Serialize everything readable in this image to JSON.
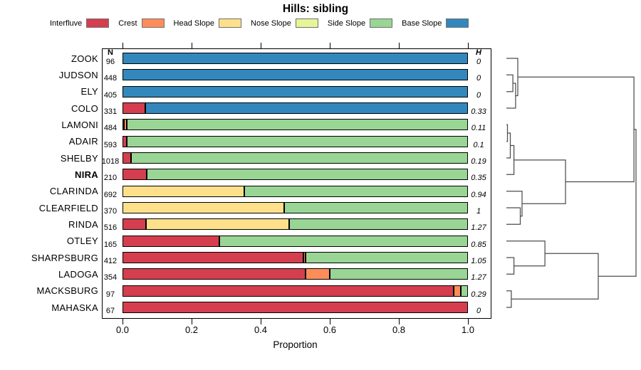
{
  "title": "Hills: sibling",
  "legend": [
    {
      "label": "Interfluve",
      "color": "#D53E4F"
    },
    {
      "label": "Crest",
      "color": "#FC8D59"
    },
    {
      "label": "Head Slope",
      "color": "#FEE08B"
    },
    {
      "label": "Nose Slope",
      "color": "#E6F598"
    },
    {
      "label": "Side Slope",
      "color": "#99D594"
    },
    {
      "label": "Base Slope",
      "color": "#3288BD"
    }
  ],
  "columns": {
    "n_header": "N",
    "h_header": "H"
  },
  "axis": {
    "tick_labels": [
      "0.0",
      "0.2",
      "0.4",
      "0.6",
      "0.8",
      "1.0"
    ],
    "xlabel": "Proportion"
  },
  "chart_data": {
    "type": "bar",
    "stacked": true,
    "orientation": "horizontal",
    "grid": false,
    "title": "Hills: sibling",
    "xlabel": "Proportion",
    "xlim": [
      0,
      1
    ],
    "categories": [
      "Interfluve",
      "Crest",
      "Head Slope",
      "Nose Slope",
      "Side Slope",
      "Base Slope"
    ],
    "colors": {
      "Interfluve": "#D53E4F",
      "Crest": "#FC8D59",
      "Head Slope": "#FEE08B",
      "Nose Slope": "#E6F598",
      "Side Slope": "#99D594",
      "Base Slope": "#3288BD"
    },
    "rows": [
      {
        "name": "ZOOK",
        "bold": false,
        "n": 96,
        "h": "0",
        "segments": [
          [
            "Base Slope",
            1.0
          ]
        ]
      },
      {
        "name": "JUDSON",
        "bold": false,
        "n": 448,
        "h": "0",
        "segments": [
          [
            "Base Slope",
            1.0
          ]
        ]
      },
      {
        "name": "ELY",
        "bold": false,
        "n": 405,
        "h": "0",
        "segments": [
          [
            "Base Slope",
            1.0
          ]
        ]
      },
      {
        "name": "COLO",
        "bold": false,
        "n": 331,
        "h": "0.33",
        "segments": [
          [
            "Interfluve",
            0.065
          ],
          [
            "Base Slope",
            0.935
          ]
        ]
      },
      {
        "name": "LAMONI",
        "bold": false,
        "n": 484,
        "h": "0.11",
        "segments": [
          [
            "Interfluve",
            0.004
          ],
          [
            "Crest",
            0.008
          ],
          [
            "Side Slope",
            0.988
          ]
        ]
      },
      {
        "name": "ADAIR",
        "bold": false,
        "n": 593,
        "h": "0.1",
        "segments": [
          [
            "Interfluve",
            0.013
          ],
          [
            "Side Slope",
            0.987
          ]
        ]
      },
      {
        "name": "SHELBY",
        "bold": false,
        "n": 1018,
        "h": "0.19",
        "segments": [
          [
            "Interfluve",
            0.024
          ],
          [
            "Side Slope",
            0.976
          ]
        ]
      },
      {
        "name": "NIRA",
        "bold": true,
        "n": 210,
        "h": "0.35",
        "segments": [
          [
            "Interfluve",
            0.07
          ],
          [
            "Side Slope",
            0.93
          ]
        ]
      },
      {
        "name": "CLARINDA",
        "bold": false,
        "n": 692,
        "h": "0.94",
        "segments": [
          [
            "Head Slope",
            0.352
          ],
          [
            "Side Slope",
            0.648
          ]
        ]
      },
      {
        "name": "CLEARFIELD",
        "bold": false,
        "n": 370,
        "h": "1",
        "segments": [
          [
            "Head Slope",
            0.467
          ],
          [
            "Side Slope",
            0.533
          ]
        ]
      },
      {
        "name": "RINDA",
        "bold": false,
        "n": 516,
        "h": "1.27",
        "segments": [
          [
            "Interfluve",
            0.068
          ],
          [
            "Head Slope",
            0.414
          ],
          [
            "Side Slope",
            0.518
          ]
        ]
      },
      {
        "name": "OTLEY",
        "bold": false,
        "n": 165,
        "h": "0.85",
        "segments": [
          [
            "Interfluve",
            0.28
          ],
          [
            "Side Slope",
            0.72
          ]
        ]
      },
      {
        "name": "SHARPSBURG",
        "bold": false,
        "n": 412,
        "h": "1.05",
        "segments": [
          [
            "Interfluve",
            0.524
          ],
          [
            "Crest",
            0.007
          ],
          [
            "Side Slope",
            0.469
          ]
        ]
      },
      {
        "name": "LADOGA",
        "bold": false,
        "n": 354,
        "h": "1.27",
        "segments": [
          [
            "Interfluve",
            0.53
          ],
          [
            "Crest",
            0.069
          ],
          [
            "Side Slope",
            0.401
          ]
        ]
      },
      {
        "name": "MACKSBURG",
        "bold": false,
        "n": 97,
        "h": "0.29",
        "segments": [
          [
            "Interfluve",
            0.958
          ],
          [
            "Crest",
            0.022
          ],
          [
            "Side Slope",
            0.02
          ]
        ]
      },
      {
        "name": "MAHASKA",
        "bold": false,
        "n": 67,
        "h": "0",
        "segments": [
          [
            "Interfluve",
            1.0
          ]
        ]
      }
    ],
    "dendrogram": {
      "leaves": [
        "ZOOK",
        "JUDSON",
        "ELY",
        "COLO",
        "LAMONI",
        "ADAIR",
        "SHELBY",
        "NIRA",
        "CLARINDA",
        "CLEARFIELD",
        "RINDA",
        "OTLEY",
        "SHARPSBURG",
        "LADOGA",
        "MACKSBURG",
        "MAHASKA"
      ],
      "merges": [
        {
          "id": "A1",
          "a": "JUDSON",
          "b": "ELY",
          "h": 0.05
        },
        {
          "id": "A2",
          "a": "A1",
          "b": "COLO",
          "h": 0.071
        },
        {
          "id": "A3",
          "a": "ZOOK",
          "b": "A2",
          "h": 0.088
        },
        {
          "id": "M1",
          "a": "LAMONI",
          "b": "ADAIR",
          "h": 0.008
        },
        {
          "id": "M2",
          "a": "M1",
          "b": "SHELBY",
          "h": 0.03
        },
        {
          "id": "M3",
          "a": "M2",
          "b": "NIRA",
          "h": 0.058
        },
        {
          "id": "M4",
          "a": "CLEARFIELD",
          "b": "RINDA",
          "h": 0.107
        },
        {
          "id": "M5",
          "a": "CLARINDA",
          "b": "M4",
          "h": 0.121
        },
        {
          "id": "M6",
          "a": "M3",
          "b": "M5",
          "h": 0.456
        },
        {
          "id": "B1",
          "a": "SHARPSBURG",
          "b": "LADOGA",
          "h": 0.058
        },
        {
          "id": "B2",
          "a": "OTLEY",
          "b": "B1",
          "h": 0.297
        },
        {
          "id": "B3",
          "a": "MACKSBURG",
          "b": "MAHASKA",
          "h": 0.038
        },
        {
          "id": "B4",
          "a": "B2",
          "b": "B3",
          "h": 0.709
        },
        {
          "id": "R1",
          "a": "A3",
          "b": "M6",
          "h": 0.984
        },
        {
          "id": "ROOT",
          "a": "R1",
          "b": "B4",
          "h": 1.0
        }
      ]
    }
  }
}
